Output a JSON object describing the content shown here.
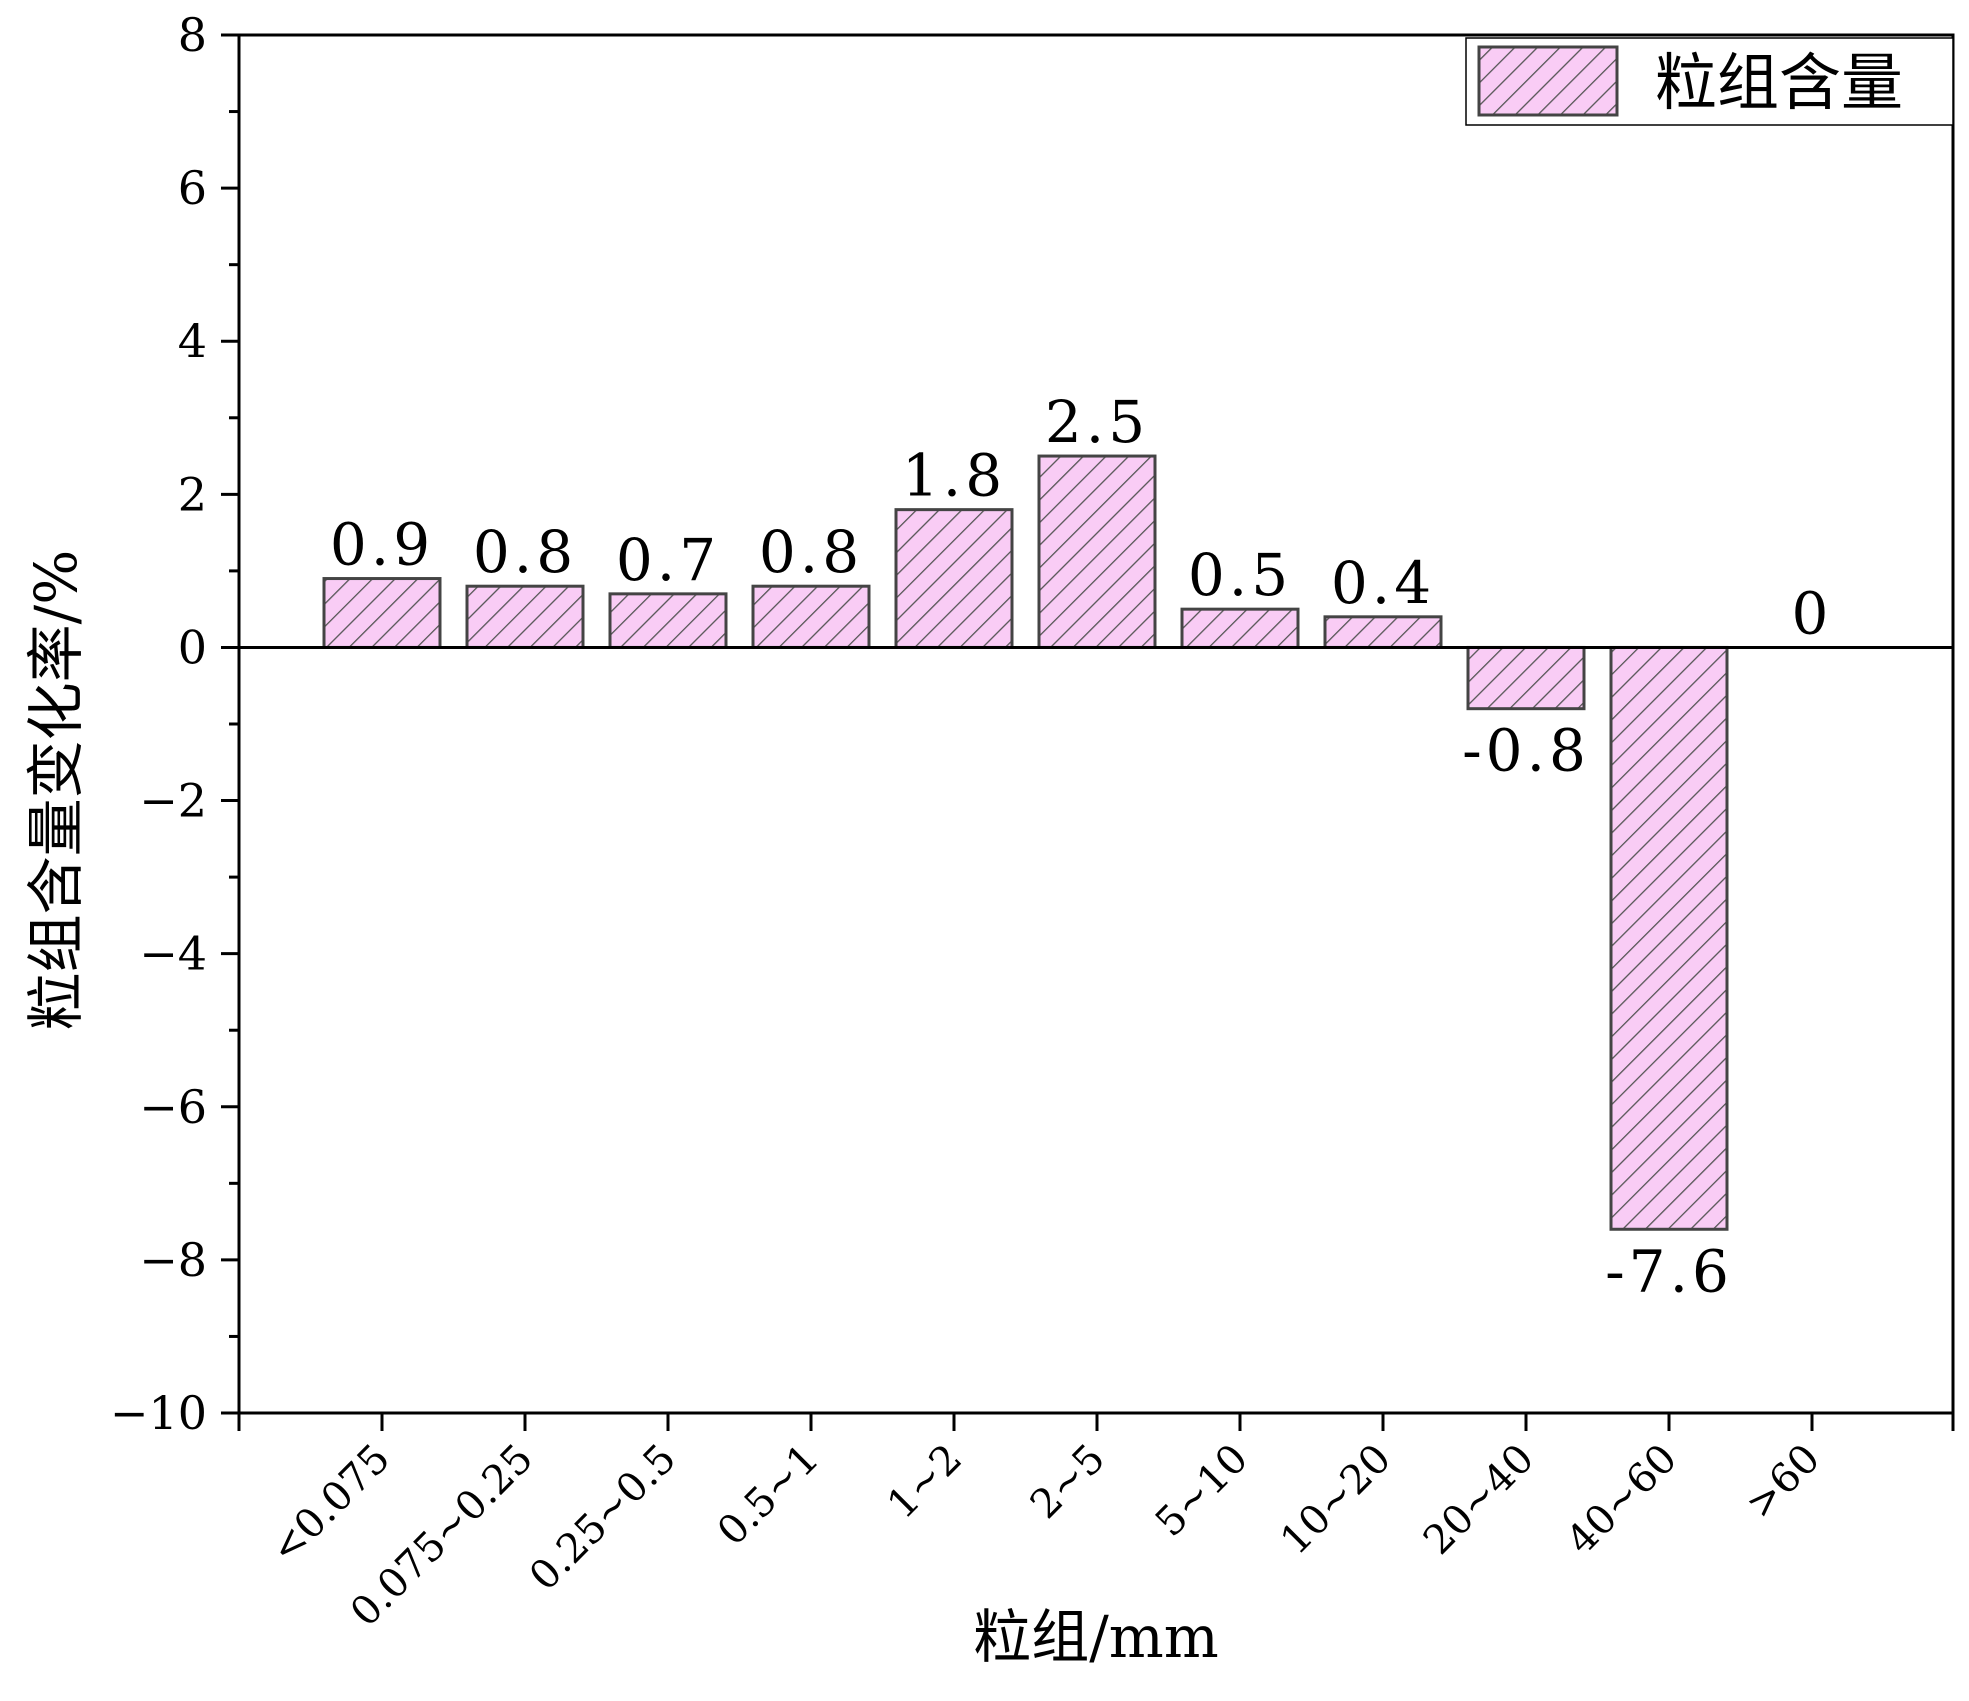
{
  "chart_data": {
    "type": "bar",
    "categories": [
      "<0.075",
      "0.075~0.25",
      "0.25~0.5",
      "0.5~1",
      "1~2",
      "2~5",
      "5~10",
      "10~20",
      "20~40",
      "40~60",
      ">60"
    ],
    "series": [
      {
        "name": "粒组含量",
        "values": [
          0.9,
          0.8,
          0.7,
          0.8,
          1.8,
          2.5,
          0.5,
          0.4,
          -0.8,
          -7.6,
          0
        ],
        "data_labels": [
          "0.9",
          "0.8",
          "0.7",
          "0.8",
          "1.8",
          "2.5",
          "0.5",
          "0.4",
          "-0.8",
          "-7.6",
          "0"
        ]
      }
    ],
    "title": "",
    "xlabel": "粒组/mm",
    "ylabel": "粒组含量变化率/%",
    "ylim": [
      -10,
      8
    ],
    "yticks": [
      -10,
      -8,
      -6,
      -4,
      -2,
      0,
      2,
      4,
      6,
      8
    ],
    "ytick_labels": [
      "−10",
      "−8",
      "−6",
      "−4",
      "−2",
      "0",
      "2",
      "4",
      "6",
      "8"
    ],
    "grid": false,
    "legend_position": "top-right",
    "zero_line": true,
    "bar_fill": "hatched",
    "colors": {
      "bar_fill": "#f9ccf5",
      "hatch": "#555555",
      "bar_stroke": "#444444",
      "axis": "#000000"
    }
  }
}
